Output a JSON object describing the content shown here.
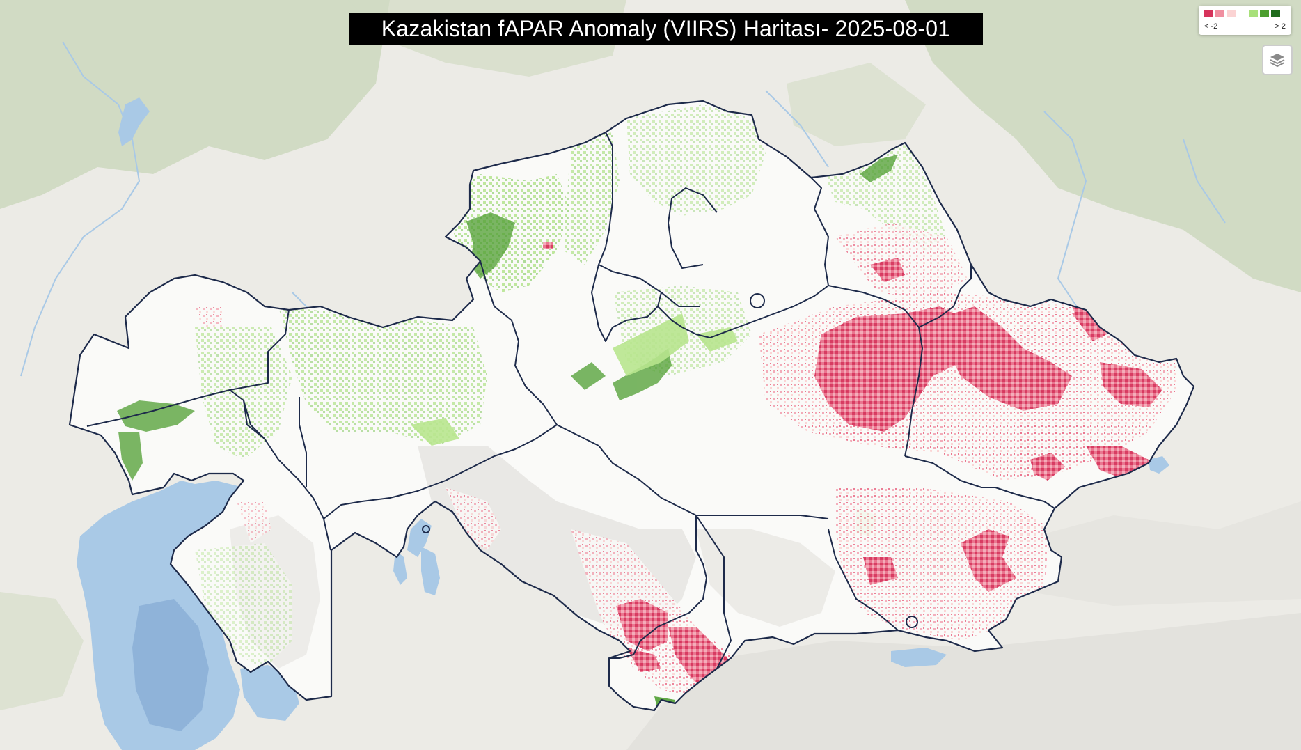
{
  "title": "Kazakistan fAPAR Anomaly (VIIRS) Haritası- 2025-08-01",
  "legend": {
    "min_label": "< -2",
    "max_label": "> 2",
    "colors": [
      "#d6335b",
      "#f08fa0",
      "#fbd3d3",
      "#ffffff",
      "#a8e07a",
      "#4c9e2e",
      "#1f6b1c"
    ]
  },
  "controls": {
    "layers_icon": "layers-icon"
  },
  "colors": {
    "background": "#ecebe6",
    "water": "#a9c9e6",
    "forest": "#c9d8b8",
    "country_fill": "#fafaf8",
    "boundary": "#1d2a4a",
    "negative_strong": "#d6335b",
    "negative_mild": "#f3a7b5",
    "positive_mild": "#a8e07a",
    "positive_strong": "#3f8f2b"
  }
}
